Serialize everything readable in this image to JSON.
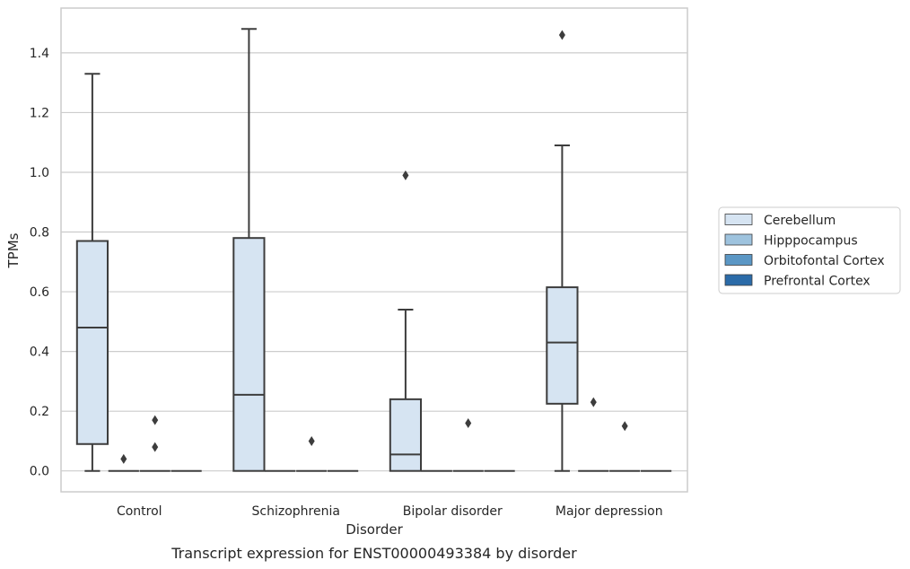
{
  "chart_data": {
    "type": "box",
    "title": "",
    "caption": "Transcript expression for ENST00000493384 by disorder",
    "xlabel": "Disorder",
    "ylabel": "TPMs",
    "ylim": [
      -0.07,
      1.55
    ],
    "yticks": [
      "0.0",
      "0.2",
      "0.4",
      "0.6",
      "0.8",
      "1.0",
      "1.2",
      "1.4"
    ],
    "grid": true,
    "legend_position": "right",
    "categories": [
      "Control",
      "Schizophrenia",
      "Bipolar disorder",
      "Major depression"
    ],
    "series": [
      {
        "name": "Cerebellum",
        "color": "#d6e4f2",
        "boxes": [
          {
            "whislo": 0.0,
            "q1": 0.09,
            "med": 0.48,
            "q3": 0.77,
            "whishi": 1.33,
            "fliers": []
          },
          {
            "whislo": 0.0,
            "q1": 0.0,
            "med": 0.255,
            "q3": 0.78,
            "whishi": 1.48,
            "fliers": []
          },
          {
            "whislo": 0.0,
            "q1": 0.0,
            "med": 0.055,
            "q3": 0.24,
            "whishi": 0.54,
            "fliers": [
              0.99
            ]
          },
          {
            "whislo": 0.0,
            "q1": 0.225,
            "med": 0.43,
            "q3": 0.615,
            "whishi": 1.09,
            "fliers": [
              1.46
            ]
          }
        ]
      },
      {
        "name": "Hipppocampus",
        "color": "#9ec3de",
        "boxes": [
          {
            "whislo": 0.0,
            "q1": 0.0,
            "med": 0.0,
            "q3": 0.0,
            "whishi": 0.0,
            "fliers": [
              0.04
            ]
          },
          {
            "whislo": 0.0,
            "q1": 0.0,
            "med": 0.0,
            "q3": 0.0,
            "whishi": 0.0,
            "fliers": []
          },
          {
            "whislo": 0.0,
            "q1": 0.0,
            "med": 0.0,
            "q3": 0.0,
            "whishi": 0.0,
            "fliers": []
          },
          {
            "whislo": 0.0,
            "q1": 0.0,
            "med": 0.0,
            "q3": 0.0,
            "whishi": 0.0,
            "fliers": [
              0.23
            ]
          }
        ]
      },
      {
        "name": "Orbitofontal Cortex",
        "color": "#5b97c5",
        "boxes": [
          {
            "whislo": 0.0,
            "q1": 0.0,
            "med": 0.0,
            "q3": 0.0,
            "whishi": 0.0,
            "fliers": [
              0.08,
              0.17
            ]
          },
          {
            "whislo": 0.0,
            "q1": 0.0,
            "med": 0.0,
            "q3": 0.0,
            "whishi": 0.0,
            "fliers": [
              0.1
            ]
          },
          {
            "whislo": 0.0,
            "q1": 0.0,
            "med": 0.0,
            "q3": 0.0,
            "whishi": 0.0,
            "fliers": [
              0.16
            ]
          },
          {
            "whislo": 0.0,
            "q1": 0.0,
            "med": 0.0,
            "q3": 0.0,
            "whishi": 0.0,
            "fliers": [
              0.15
            ]
          }
        ]
      },
      {
        "name": "Prefrontal Cortex",
        "color": "#2b6ba8",
        "boxes": [
          {
            "whislo": 0.0,
            "q1": 0.0,
            "med": 0.0,
            "q3": 0.0,
            "whishi": 0.0,
            "fliers": []
          },
          {
            "whislo": 0.0,
            "q1": 0.0,
            "med": 0.0,
            "q3": 0.0,
            "whishi": 0.0,
            "fliers": []
          },
          {
            "whislo": 0.0,
            "q1": 0.0,
            "med": 0.0,
            "q3": 0.0,
            "whishi": 0.0,
            "fliers": []
          },
          {
            "whislo": 0.0,
            "q1": 0.0,
            "med": 0.0,
            "q3": 0.0,
            "whishi": 0.0,
            "fliers": []
          }
        ]
      }
    ]
  }
}
